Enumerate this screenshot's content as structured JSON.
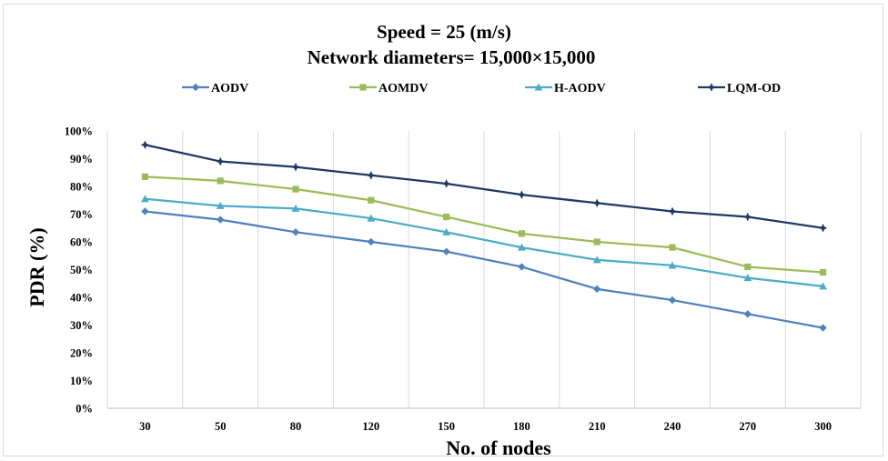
{
  "chart_data": {
    "type": "line",
    "title_lines": [
      "Speed = 25 (m/s)",
      "Network diameters= 15,000×15,000"
    ],
    "xlabel": "No. of nodes",
    "ylabel": "PDR (%)",
    "categories": [
      "30",
      "50",
      "80",
      "120",
      "150",
      "180",
      "210",
      "240",
      "270",
      "300"
    ],
    "yticks": [
      "0%",
      "10%",
      "20%",
      "30%",
      "40%",
      "50%",
      "60%",
      "70%",
      "80%",
      "90%",
      "100%"
    ],
    "ylim": [
      0,
      100
    ],
    "grid": "vertical",
    "legend_position": "top",
    "series": [
      {
        "name": "AODV",
        "color": "#4f81bd",
        "marker": "diamond",
        "values": [
          71,
          68,
          63.5,
          60,
          56.5,
          51,
          43,
          39,
          34,
          29
        ]
      },
      {
        "name": "AOMDV",
        "color": "#9bbb59",
        "marker": "square",
        "values": [
          83.5,
          82,
          79,
          75,
          69,
          63,
          60,
          58,
          51,
          49
        ]
      },
      {
        "name": "H-AODV",
        "color": "#4bacc6",
        "marker": "triangle",
        "values": [
          75.5,
          73,
          72,
          68.5,
          63.5,
          58,
          53.5,
          51.5,
          47,
          44
        ]
      },
      {
        "name": "LQM-OD",
        "color": "#1f3864",
        "marker": "star",
        "values": [
          95,
          89,
          87,
          84,
          81,
          77,
          74,
          71,
          69,
          65
        ]
      }
    ]
  }
}
